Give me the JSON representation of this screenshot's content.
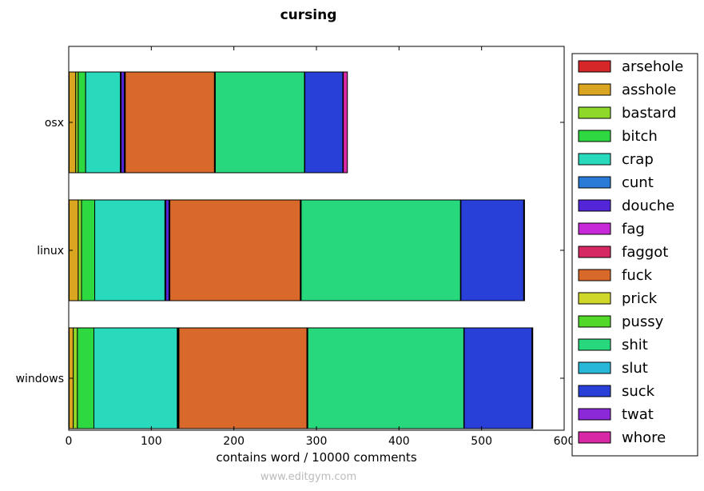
{
  "chart_data": {
    "type": "bar",
    "orientation": "horizontal",
    "stacked": true,
    "title": "cursing",
    "xlabel": "contains word / 10000 comments",
    "ylabel": "",
    "xlim": [
      0,
      600
    ],
    "x_ticks": [
      "0",
      "100",
      "200",
      "300",
      "400",
      "500",
      "600"
    ],
    "categories": [
      "osx",
      "linux",
      "windows"
    ],
    "grid": false,
    "legend_position": "right",
    "series": [
      {
        "name": "arsehole",
        "color": "#d62728",
        "values": [
          0.5,
          0.5,
          0.5
        ]
      },
      {
        "name": "asshole",
        "color": "#daa520",
        "values": [
          8,
          11,
          5
        ]
      },
      {
        "name": "bastard",
        "color": "#8fd82a",
        "values": [
          3,
          4,
          5
        ]
      },
      {
        "name": "bitch",
        "color": "#2ed840",
        "values": [
          9,
          16,
          20
        ]
      },
      {
        "name": "crap",
        "color": "#29d9bb",
        "values": [
          42,
          85,
          101
        ]
      },
      {
        "name": "cunt",
        "color": "#2a7ad8",
        "values": [
          1,
          1,
          0.5
        ]
      },
      {
        "name": "douche",
        "color": "#5526d8",
        "values": [
          4,
          4,
          0.5
        ]
      },
      {
        "name": "fag",
        "color": "#c728d8",
        "values": [
          0.5,
          0.5,
          0.5
        ]
      },
      {
        "name": "faggot",
        "color": "#d62862",
        "values": [
          0.5,
          0.5,
          0.5
        ]
      },
      {
        "name": "fuck",
        "color": "#d8692a",
        "values": [
          108,
          158,
          155
        ]
      },
      {
        "name": "prick",
        "color": "#cfd828",
        "values": [
          0.5,
          0.5,
          0.5
        ]
      },
      {
        "name": "pussy",
        "color": "#52d828",
        "values": [
          0.5,
          0.5,
          0.5
        ]
      },
      {
        "name": "shit",
        "color": "#28d87d",
        "values": [
          108,
          193,
          189
        ]
      },
      {
        "name": "slut",
        "color": "#28b7d8",
        "values": [
          0.5,
          0.5,
          0.5
        ]
      },
      {
        "name": "suck",
        "color": "#283fd8",
        "values": [
          46,
          76,
          82
        ]
      },
      {
        "name": "twat",
        "color": "#8b28d8",
        "values": [
          0.5,
          0.5,
          0.5
        ]
      },
      {
        "name": "whore",
        "color": "#d828a5",
        "values": [
          5,
          0.5,
          0.5
        ]
      }
    ]
  },
  "watermark": "www.editgym.com"
}
